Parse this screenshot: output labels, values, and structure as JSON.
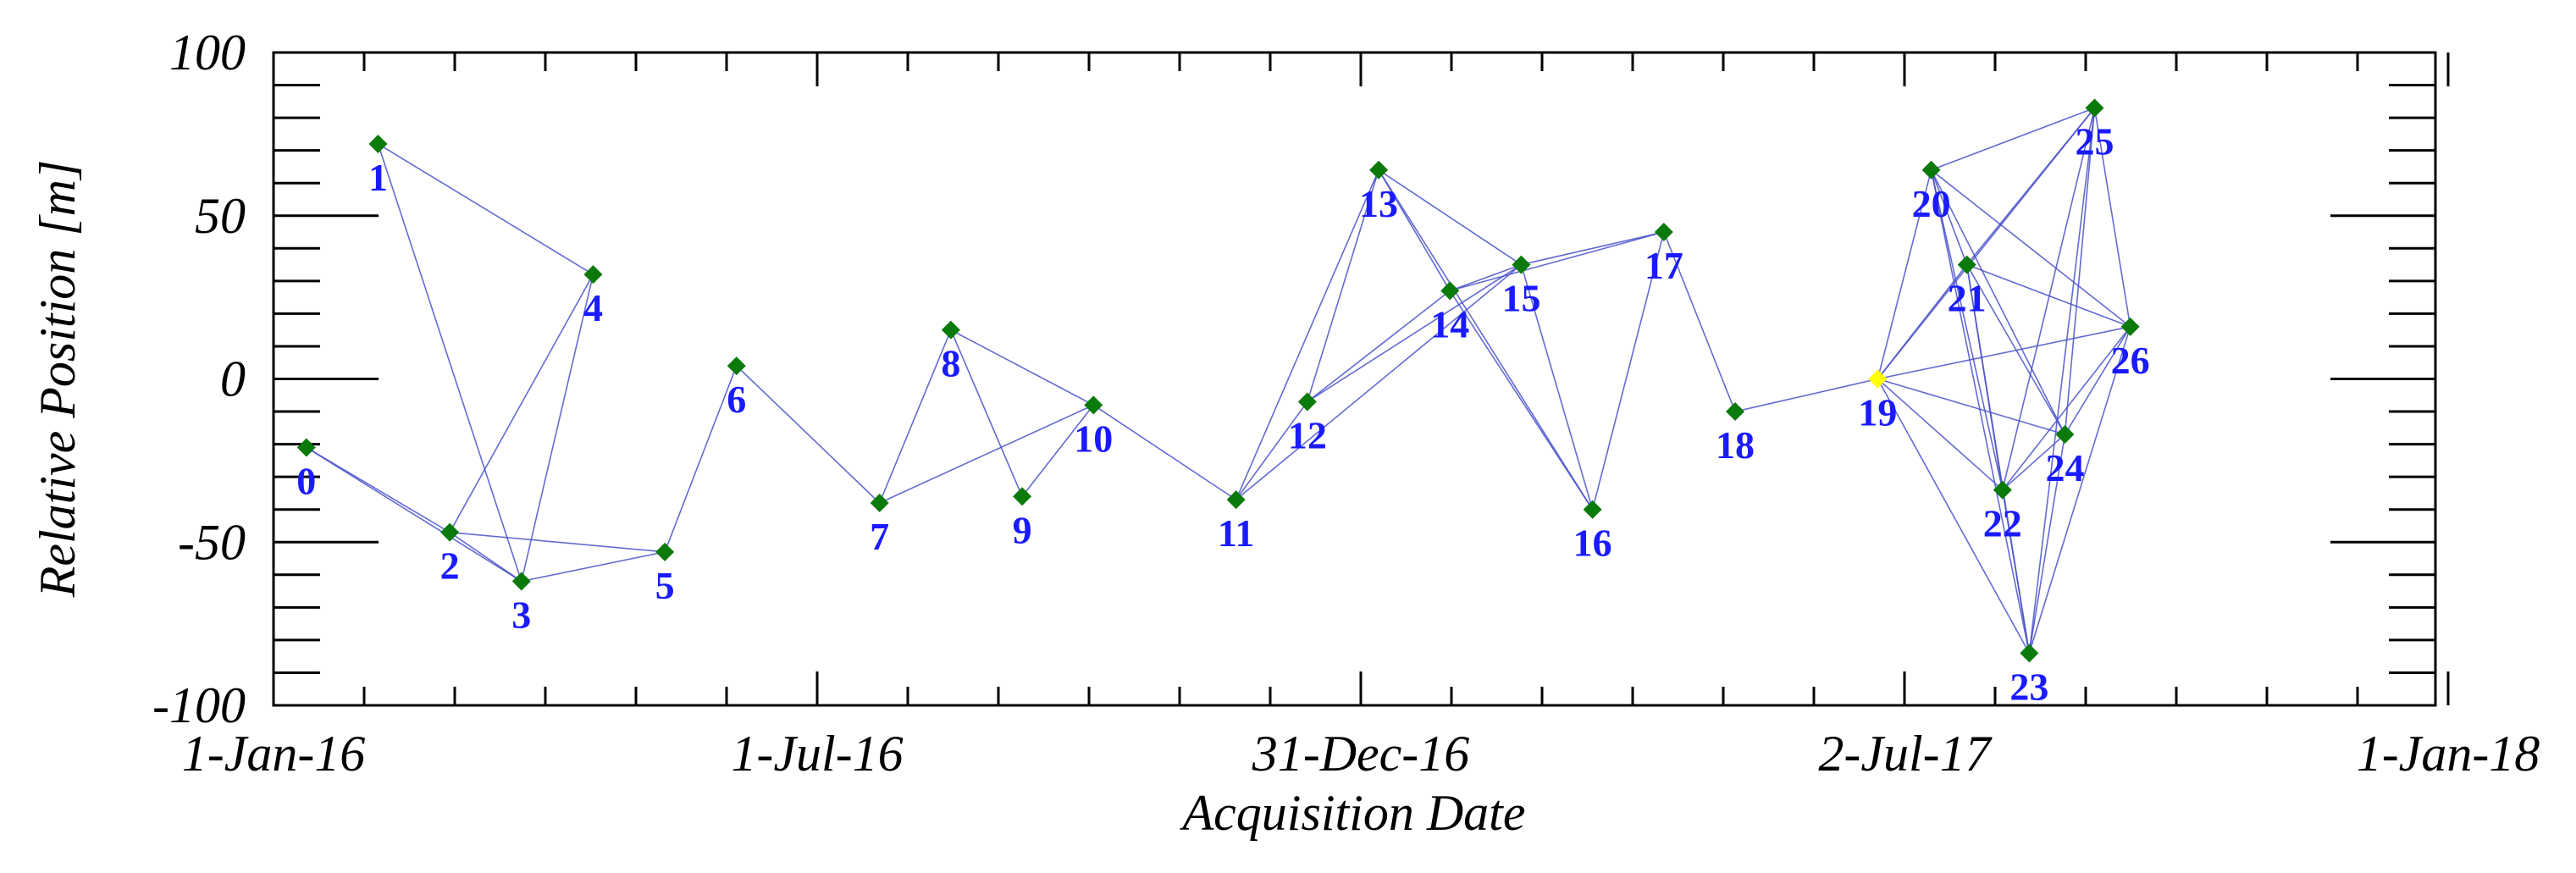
{
  "chart_data": {
    "type": "scatter",
    "title": "",
    "xlabel": "Acquisition Date",
    "ylabel": "Relative Position [m]",
    "ylim": [
      -100,
      100
    ],
    "xlim": [
      "2016-01-01",
      "2018-01-01"
    ],
    "x_ticks": [
      {
        "date": "2016-01-01",
        "label": "1-Jan-16"
      },
      {
        "date": "2016-07-01",
        "label": "1-Jul-16"
      },
      {
        "date": "2016-12-31",
        "label": "31-Dec-16"
      },
      {
        "date": "2017-07-02",
        "label": "2-Jul-17"
      },
      {
        "date": "2018-01-01",
        "label": "1-Jan-18"
      }
    ],
    "y_ticks": [
      100,
      50,
      0,
      -50,
      -100
    ],
    "colors": {
      "point": "#0a7a0a",
      "master": "#ffff00",
      "edge": "#4a52c8",
      "label": "#1a1aff"
    },
    "master_index": 19,
    "points": [
      {
        "id": "0",
        "date": "2016-01-12",
        "y": -21
      },
      {
        "id": "1",
        "date": "2016-02-05",
        "y": 72
      },
      {
        "id": "2",
        "date": "2016-02-29",
        "y": -47
      },
      {
        "id": "3",
        "date": "2016-03-24",
        "y": -62
      },
      {
        "id": "4",
        "date": "2016-04-17",
        "y": 32
      },
      {
        "id": "5",
        "date": "2016-05-11",
        "y": -53
      },
      {
        "id": "6",
        "date": "2016-06-04",
        "y": 4
      },
      {
        "id": "7",
        "date": "2016-07-22",
        "y": -38
      },
      {
        "id": "8",
        "date": "2016-08-15",
        "y": 15
      },
      {
        "id": "9",
        "date": "2016-09-08",
        "y": -36
      },
      {
        "id": "10",
        "date": "2016-10-02",
        "y": -8
      },
      {
        "id": "11",
        "date": "2016-11-19",
        "y": -37
      },
      {
        "id": "12",
        "date": "2016-12-13",
        "y": -7
      },
      {
        "id": "13",
        "date": "2017-01-06",
        "y": 64
      },
      {
        "id": "14",
        "date": "2017-01-30",
        "y": 27
      },
      {
        "id": "15",
        "date": "2017-02-23",
        "y": 35
      },
      {
        "id": "16",
        "date": "2017-03-19",
        "y": -40
      },
      {
        "id": "17",
        "date": "2017-04-12",
        "y": 45
      },
      {
        "id": "18",
        "date": "2017-05-06",
        "y": -10
      },
      {
        "id": "19",
        "date": "2017-06-23",
        "y": 0
      },
      {
        "id": "20",
        "date": "2017-07-11",
        "y": 64
      },
      {
        "id": "21",
        "date": "2017-07-23",
        "y": 35
      },
      {
        "id": "22",
        "date": "2017-08-04",
        "y": -34
      },
      {
        "id": "23",
        "date": "2017-08-13",
        "y": -84
      },
      {
        "id": "24",
        "date": "2017-08-25",
        "y": -17
      },
      {
        "id": "25",
        "date": "2017-09-04",
        "y": 83
      },
      {
        "id": "26",
        "date": "2017-09-16",
        "y": 16
      }
    ],
    "connections": [
      [
        0,
        2
      ],
      [
        0,
        3
      ],
      [
        1,
        3
      ],
      [
        1,
        4
      ],
      [
        2,
        3
      ],
      [
        2,
        4
      ],
      [
        2,
        5
      ],
      [
        3,
        4
      ],
      [
        3,
        5
      ],
      [
        5,
        6
      ],
      [
        6,
        7
      ],
      [
        7,
        8
      ],
      [
        7,
        10
      ],
      [
        8,
        9
      ],
      [
        8,
        10
      ],
      [
        9,
        10
      ],
      [
        10,
        11
      ],
      [
        11,
        12
      ],
      [
        11,
        13
      ],
      [
        11,
        15
      ],
      [
        12,
        13
      ],
      [
        12,
        14
      ],
      [
        12,
        15
      ],
      [
        13,
        14
      ],
      [
        13,
        15
      ],
      [
        13,
        16
      ],
      [
        14,
        15
      ],
      [
        14,
        16
      ],
      [
        14,
        17
      ],
      [
        15,
        16
      ],
      [
        15,
        17
      ],
      [
        16,
        17
      ],
      [
        17,
        18
      ],
      [
        18,
        19
      ],
      [
        19,
        20
      ],
      [
        19,
        21
      ],
      [
        19,
        22
      ],
      [
        19,
        23
      ],
      [
        19,
        24
      ],
      [
        19,
        25
      ],
      [
        19,
        26
      ],
      [
        20,
        21
      ],
      [
        20,
        22
      ],
      [
        20,
        23
      ],
      [
        20,
        24
      ],
      [
        20,
        25
      ],
      [
        20,
        26
      ],
      [
        21,
        22
      ],
      [
        21,
        23
      ],
      [
        21,
        24
      ],
      [
        21,
        25
      ],
      [
        21,
        26
      ],
      [
        22,
        23
      ],
      [
        22,
        24
      ],
      [
        22,
        25
      ],
      [
        22,
        26
      ],
      [
        23,
        24
      ],
      [
        23,
        25
      ],
      [
        23,
        26
      ],
      [
        24,
        25
      ],
      [
        24,
        26
      ],
      [
        25,
        26
      ]
    ]
  }
}
